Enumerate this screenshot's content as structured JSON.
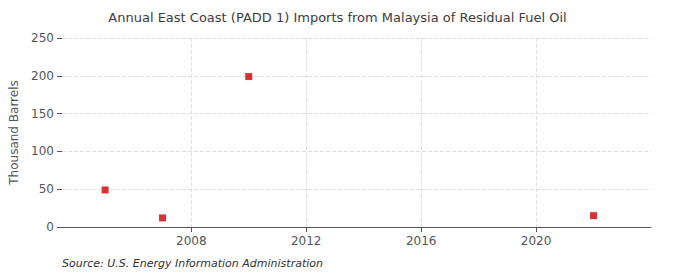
{
  "chart_data": {
    "type": "scatter",
    "title": "Annual East Coast (PADD 1) Imports from Malaysia of Residual Fuel Oil",
    "ylabel": "Thousand Barrels",
    "annotation": "Source: U.S. Energy Information Administration",
    "x": [
      2005,
      2007,
      2010,
      2022
    ],
    "values": [
      49,
      12,
      199,
      15
    ],
    "color": "#cc0000",
    "marker": "square",
    "xlim": [
      2003.5,
      2024
    ],
    "xticks": [
      2008,
      2012,
      2016,
      2020
    ],
    "ylim": [
      0,
      250
    ],
    "yticks": [
      0,
      50,
      100,
      150,
      200,
      250
    ],
    "grid": true
  }
}
